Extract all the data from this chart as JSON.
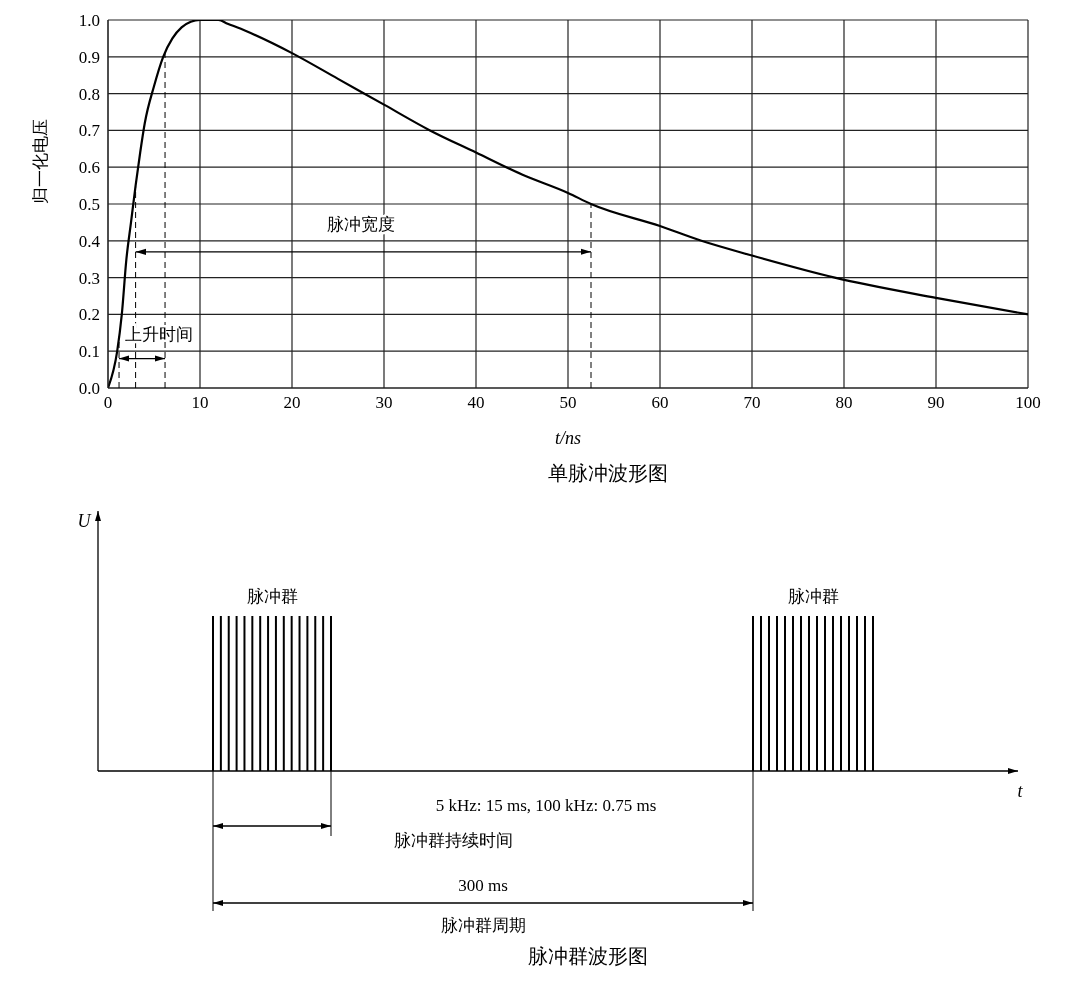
{
  "chart_data": [
    {
      "type": "line",
      "title": "单脉冲波形图",
      "xlabel": "t/ns",
      "ylabel": "归一化电压",
      "x": [
        0,
        1,
        1.5,
        2,
        2.5,
        3,
        3.5,
        4,
        5,
        6,
        7,
        8,
        9,
        10,
        11,
        12,
        13,
        15,
        20,
        25,
        30,
        35,
        40,
        45,
        50,
        52.5,
        60,
        64.5,
        70,
        79,
        90,
        100
      ],
      "series": [
        {
          "color": "#000000",
          "values": [
            0,
            0.1,
            0.2,
            0.35,
            0.45,
            0.55,
            0.64,
            0.72,
            0.82,
            0.9,
            0.95,
            0.98,
            0.995,
            1.0,
            1.0,
            1.0,
            0.99,
            0.97,
            0.91,
            0.84,
            0.77,
            0.7,
            0.64,
            0.58,
            0.53,
            0.5,
            0.44,
            0.4,
            0.36,
            0.3,
            0.245,
            0.2
          ]
        }
      ],
      "xlim": [
        0,
        100
      ],
      "xticks": [
        0,
        10,
        20,
        30,
        40,
        50,
        60,
        70,
        80,
        90,
        100
      ],
      "ylim": [
        0,
        1
      ],
      "yticks": [
        {
          "value": 0,
          "label": "0.0"
        },
        {
          "value": 0.1,
          "label": "0.1"
        },
        {
          "value": 0.2,
          "label": "0.2"
        },
        {
          "value": 0.3,
          "label": "0.3"
        },
        {
          "value": 0.4,
          "label": "0.4"
        },
        {
          "value": 0.5,
          "label": "0.5"
        },
        {
          "value": 0.6,
          "label": "0.6"
        },
        {
          "value": 0.7,
          "label": "0.7"
        },
        {
          "value": 0.8,
          "label": "0.8"
        },
        {
          "value": 0.9,
          "label": "0.9"
        },
        {
          "value": 1,
          "label": "1.0"
        }
      ],
      "grid": true,
      "marker": "none",
      "line_style": "solid",
      "ref_lines": [
        {
          "axis": "x",
          "value": 1.2,
          "line_style": "dashed",
          "color": "#000000"
        },
        {
          "axis": "x",
          "value": 3,
          "line_style": "dashed",
          "color": "#000000"
        },
        {
          "axis": "x",
          "value": 6.2,
          "line_style": "dashed",
          "color": "#000000"
        },
        {
          "axis": "x",
          "value": 52.5,
          "line_style": "dashed",
          "color": "#000000"
        }
      ],
      "annotations": [
        "上升时间",
        "脉冲宽度"
      ]
    },
    {
      "type": "other",
      "title": "脉冲群波形图",
      "xlabel": "t",
      "ylabel": "U",
      "annotations": [
        "脉冲群",
        "脉冲群",
        "5 kHz: 15 ms, 100 kHz: 0.75 ms",
        "脉冲群持续时间",
        "300 ms",
        "脉冲群周期"
      ]
    }
  ]
}
